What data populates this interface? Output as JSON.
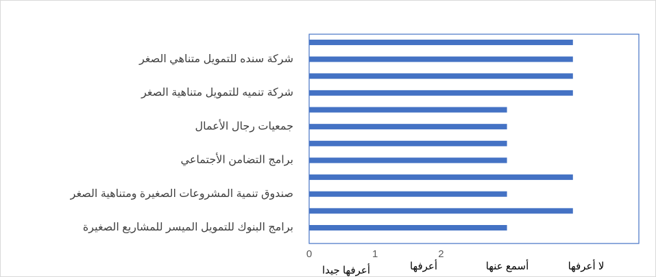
{
  "chart_data": {
    "type": "barh",
    "categories": [
      "برامج البنوك للتمويل الميسر للمشاريع  الصغيرة",
      null,
      "صندوق تنمية المشروعات الصغيرة ومتناهية الصغر",
      null,
      "برامج التضامن الأجتماعي",
      null,
      "جمعيات رجال الأعمال",
      null,
      "شركة تنميه للتمويل  متناهية الصغر",
      null,
      "شركة سنده للتمويل متناهي الصغر",
      null
    ],
    "values": [
      3,
      4,
      3,
      4,
      3,
      3,
      3,
      3,
      4,
      4,
      4,
      4
    ],
    "color": "#4472c4",
    "xlim": [
      0,
      5
    ],
    "xticks": [
      0,
      1,
      2
    ],
    "annotations": [
      "أعرفها جيدا",
      "أعرفها",
      "أسمع عنها",
      "لا أعرفها"
    ],
    "grid": false
  }
}
